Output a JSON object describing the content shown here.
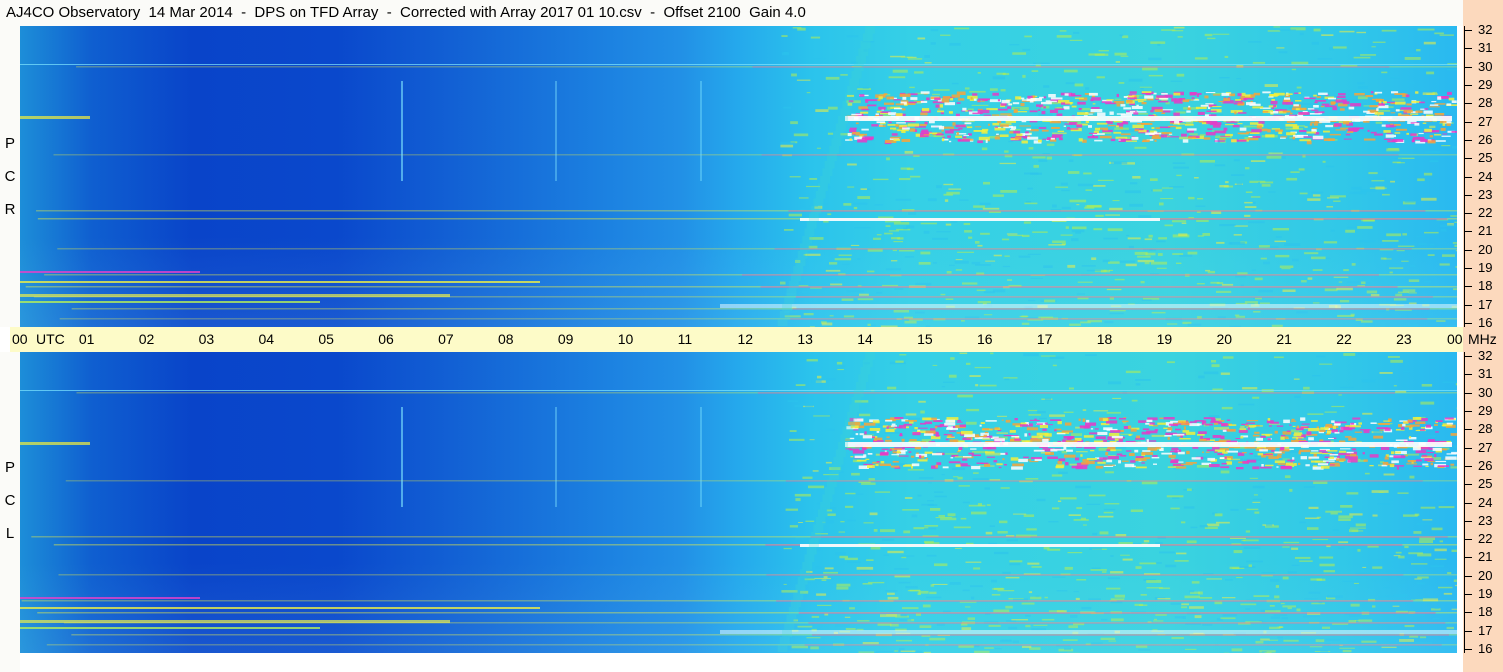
{
  "title": "AJ4CO Observatory  14 Mar 2014  -  DPS on TFD Array  -  Corrected with Array 2017 01 10.csv  -  Offset 2100  Gain 4.0",
  "chart_data": {
    "type": "heatmap",
    "x_axis": {
      "unit_label": "UTC",
      "ticks": [
        "00",
        "01",
        "02",
        "03",
        "04",
        "05",
        "06",
        "07",
        "08",
        "09",
        "10",
        "11",
        "12",
        "13",
        "14",
        "15",
        "16",
        "17",
        "18",
        "19",
        "20",
        "21",
        "22",
        "23",
        "00"
      ],
      "range": [
        0,
        24
      ]
    },
    "y_axis": {
      "unit_label": "MHz",
      "ticks": [
        "16",
        "17",
        "18",
        "19",
        "20",
        "21",
        "22",
        "23",
        "24",
        "25",
        "26",
        "27",
        "28",
        "29",
        "30",
        "31",
        "32"
      ],
      "range": [
        16,
        32
      ]
    },
    "panels": [
      {
        "name": "rcp-panel",
        "label": [
          "R",
          "C",
          "P"
        ]
      },
      {
        "name": "lcp-panel",
        "label": [
          "L",
          "C",
          "P"
        ]
      }
    ],
    "colors": {
      "low": "#0944c9",
      "mid": "#2bc3ec",
      "high_green": "#b8f04a",
      "high_yellow": "#f4f03a",
      "high_orange": "#f7a43a",
      "high_magenta": "#e83ac8",
      "saturated": "#ffffff"
    }
  }
}
